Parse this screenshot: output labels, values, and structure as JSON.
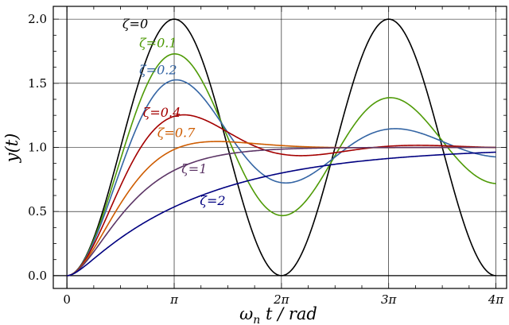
{
  "chart_data": {
    "type": "line",
    "xlabel_main": "ω",
    "xlabel_sub": "n",
    "xlabel_rest": " t / rad",
    "ylabel": "y(t)",
    "xlim": [
      -0.4,
      12.88
    ],
    "ylim": [
      -0.1,
      2.1
    ],
    "x_ticks": [
      {
        "value": 0,
        "label": "0"
      },
      {
        "value": 3.14159,
        "label": "π"
      },
      {
        "value": 6.28319,
        "label": "2π"
      },
      {
        "value": 9.42478,
        "label": "3π"
      },
      {
        "value": 12.56637,
        "label": "4π"
      }
    ],
    "y_ticks": [
      {
        "value": 0.0,
        "label": "0.0"
      },
      {
        "value": 0.5,
        "label": "0.5"
      },
      {
        "value": 1.0,
        "label": "1.0"
      },
      {
        "value": 1.5,
        "label": "1.5"
      },
      {
        "value": 2.0,
        "label": "2.0"
      }
    ],
    "grid": true,
    "series": [
      {
        "name": "ζ=0",
        "zeta": 0,
        "color": "#000000",
        "label_x": 2.0,
        "label_y": 1.93
      },
      {
        "name": "ζ=0.1",
        "zeta": 0.1,
        "color": "#4e9a06",
        "label_x": 2.67,
        "label_y": 1.78
      },
      {
        "name": "ζ=0.2",
        "zeta": 0.2,
        "color": "#3465a4",
        "label_x": 2.67,
        "label_y": 1.57
      },
      {
        "name": "ζ=0.4",
        "zeta": 0.4,
        "color": "#a40000",
        "label_x": 2.78,
        "label_y": 1.24
      },
      {
        "name": "ζ=0.7",
        "zeta": 0.7,
        "color": "#ce5c00",
        "label_x": 3.2,
        "label_y": 1.08
      },
      {
        "name": "ζ=1",
        "zeta": 1,
        "color": "#5c3566",
        "label_x": 3.73,
        "label_y": 0.8
      },
      {
        "name": "ζ=2",
        "zeta": 2,
        "color": "#000080",
        "label_x": 4.27,
        "label_y": 0.55
      }
    ]
  }
}
